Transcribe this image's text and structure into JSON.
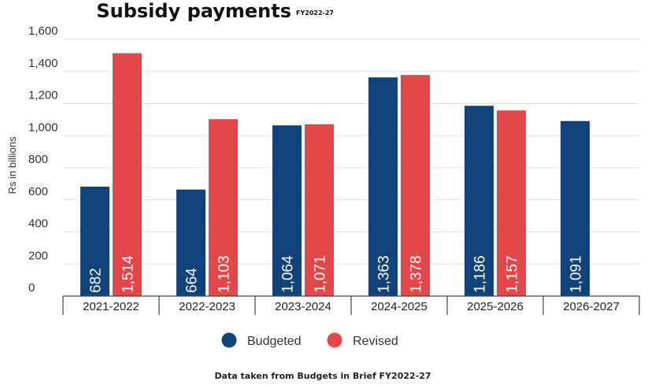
{
  "chart_data": {
    "type": "bar",
    "title": "Subsidy payments",
    "subtitle": "FY2022-27",
    "ylabel": "Rs in billions",
    "xlabel": "",
    "ylim": [
      0,
      1600
    ],
    "yticks": [
      0,
      200,
      400,
      600,
      800,
      1000,
      1200,
      1400,
      1600
    ],
    "ytick_labels": [
      "0",
      "200",
      "400",
      "600",
      "800",
      "1,000",
      "1,200",
      "1,400",
      "1,600"
    ],
    "grid": true,
    "legend_position": "bottom-center",
    "categories": [
      "2021-2022",
      "2022-2023",
      "2023-2024",
      "2024-2025",
      "2025-2026",
      "2026-2027"
    ],
    "series": [
      {
        "name": "Budgeted",
        "color": "#12427a",
        "values": [
          682,
          664,
          1064,
          1363,
          1186,
          1091
        ],
        "labels": [
          "682",
          "664",
          "1,064",
          "1,363",
          "1,186",
          "1,091"
        ]
      },
      {
        "name": "Revised",
        "color": "#e4474a",
        "values": [
          1514,
          1103,
          1071,
          1378,
          1157,
          null
        ],
        "labels": [
          "1,514",
          "1,103",
          "1,071",
          "1,378",
          "1,157",
          null
        ]
      }
    ],
    "footnote": "Data taken from Budgets in Brief FY2022-27"
  }
}
